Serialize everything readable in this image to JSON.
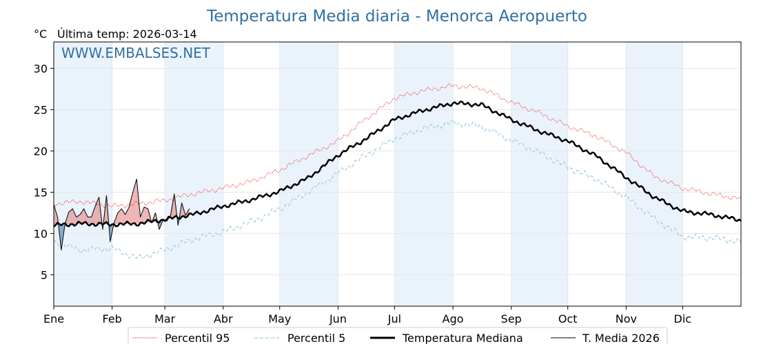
{
  "title": "Temperatura Media diaria - Menorca Aeropuerto",
  "unit": "°C",
  "last_temp": "Última temp: 2026-03-14",
  "watermark": "WWW.EMBALSES.NET",
  "colors": {
    "title": "#2f6fa3",
    "p95": "#e8251f",
    "p5": "#9fcbe0",
    "median": "#000000",
    "current": "#000000",
    "above_fill": "#e07a7a",
    "below_fill": "#5b8fbf",
    "band_fill": "#eaf3fb"
  },
  "chart_data": {
    "type": "line",
    "title": "Temperatura Media diaria - Menorca Aeropuerto",
    "xlabel": "",
    "ylabel": "°C",
    "ylim": [
      1.2,
      33.2
    ],
    "yticks": [
      5,
      10,
      15,
      20,
      25,
      30
    ],
    "xlim": [
      1,
      366
    ],
    "x_ticks": [
      {
        "label": "Ene",
        "day": 1
      },
      {
        "label": "Feb",
        "day": 32
      },
      {
        "label": "Mar",
        "day": 60
      },
      {
        "label": "Abr",
        "day": 91
      },
      {
        "label": "May",
        "day": 121
      },
      {
        "label": "Jun",
        "day": 152
      },
      {
        "label": "Jul",
        "day": 182
      },
      {
        "label": "Ago",
        "day": 213
      },
      {
        "label": "Sep",
        "day": 244
      },
      {
        "label": "Oct",
        "day": 274
      },
      {
        "label": "Nov",
        "day": 305
      },
      {
        "label": "Dic",
        "day": 335
      }
    ],
    "grid": true,
    "legend_position": "bottom-center",
    "series": [
      {
        "name": "Percentil 95",
        "style": "dotted",
        "x": [
          1,
          15,
          32,
          46,
          60,
          75,
          91,
          106,
          121,
          136,
          152,
          167,
          182,
          197,
          213,
          228,
          244,
          259,
          274,
          289,
          305,
          320,
          335,
          350,
          366
        ],
        "y": [
          13.6,
          13.9,
          13.3,
          13.6,
          14.0,
          14.8,
          15.5,
          16.3,
          17.7,
          19.4,
          21.2,
          23.9,
          26.4,
          27.3,
          27.9,
          27.6,
          25.9,
          24.6,
          23.0,
          21.8,
          19.8,
          16.9,
          15.5,
          14.8,
          14.2
        ]
      },
      {
        "name": "Percentil 5",
        "style": "dashed",
        "x": [
          1,
          15,
          32,
          46,
          60,
          75,
          91,
          106,
          121,
          136,
          152,
          167,
          182,
          197,
          213,
          228,
          244,
          259,
          274,
          289,
          305,
          320,
          335,
          350,
          366
        ],
        "y": [
          9.0,
          8.0,
          8.2,
          7.0,
          8.0,
          9.3,
          10.2,
          11.4,
          13.0,
          15.0,
          17.3,
          19.5,
          21.5,
          22.7,
          23.4,
          23.0,
          21.3,
          19.8,
          18.0,
          16.6,
          14.4,
          11.8,
          9.6,
          9.5,
          9.0
        ]
      },
      {
        "name": "Temperatura Mediana",
        "style": "thick",
        "x": [
          1,
          15,
          32,
          46,
          60,
          75,
          91,
          106,
          121,
          136,
          152,
          167,
          182,
          197,
          213,
          228,
          244,
          259,
          274,
          289,
          305,
          320,
          335,
          350,
          366
        ],
        "y": [
          11.0,
          11.2,
          11.1,
          11.2,
          11.7,
          12.3,
          13.3,
          14.1,
          15.1,
          16.7,
          19.5,
          21.5,
          23.8,
          24.9,
          25.8,
          25.6,
          23.8,
          22.4,
          21.2,
          19.4,
          16.8,
          14.4,
          12.7,
          12.3,
          11.6
        ]
      },
      {
        "name": "T. Media 2026",
        "style": "thin",
        "x": [
          1,
          3,
          5,
          7,
          9,
          11,
          13,
          15,
          17,
          19,
          21,
          23,
          25,
          27,
          29,
          31,
          33,
          35,
          37,
          39,
          41,
          43,
          45,
          47,
          49,
          51,
          53,
          55,
          57,
          59,
          61,
          63,
          65,
          67,
          69,
          71,
          73
        ],
        "y": [
          13.5,
          12.0,
          8.0,
          11.2,
          12.6,
          13.0,
          12.0,
          12.3,
          13.0,
          12.0,
          12.0,
          13.3,
          14.4,
          10.5,
          14.6,
          9.0,
          11.3,
          12.5,
          13.0,
          12.3,
          13.2,
          15.0,
          16.6,
          12.0,
          13.2,
          13.0,
          11.3,
          12.5,
          10.5,
          11.6,
          11.5,
          12.2,
          14.8,
          11.0,
          13.7,
          12.2,
          13.0
        ]
      }
    ]
  },
  "legend": {
    "p95": "Percentil 95",
    "p5": "Percentil 5",
    "median": "Temperatura Mediana",
    "current": "T. Media 2026"
  }
}
